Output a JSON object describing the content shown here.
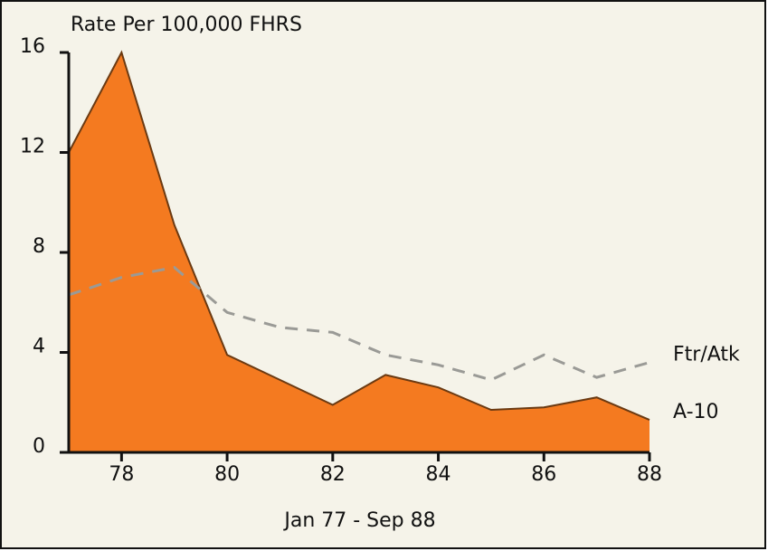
{
  "chart_data": {
    "type": "line",
    "ylabel": "Rate Per 100,000 FHRS",
    "xlabel": "Jan 77 - Sep 88",
    "x": [
      77,
      78,
      79,
      80,
      81,
      82,
      83,
      84,
      85,
      86,
      87,
      88
    ],
    "xlim": [
      77,
      88
    ],
    "xticks": [
      78,
      80,
      82,
      84,
      86,
      88
    ],
    "ylim": [
      0,
      16
    ],
    "yticks": [
      0,
      4,
      8,
      12,
      16
    ],
    "series": [
      {
        "name": "A-10",
        "color": "#f47a20",
        "area": true,
        "values": [
          12,
          16,
          9.1,
          3.9,
          2.9,
          1.9,
          3.1,
          2.6,
          1.7,
          1.8,
          2.2,
          1.3
        ]
      },
      {
        "name": "Ftr/Atk",
        "color": "#9a9a96",
        "dash": true,
        "values": [
          6.3,
          7.0,
          7.4,
          5.6,
          5.0,
          4.8,
          3.9,
          3.5,
          2.9,
          3.9,
          3.0,
          3.6
        ]
      }
    ]
  }
}
